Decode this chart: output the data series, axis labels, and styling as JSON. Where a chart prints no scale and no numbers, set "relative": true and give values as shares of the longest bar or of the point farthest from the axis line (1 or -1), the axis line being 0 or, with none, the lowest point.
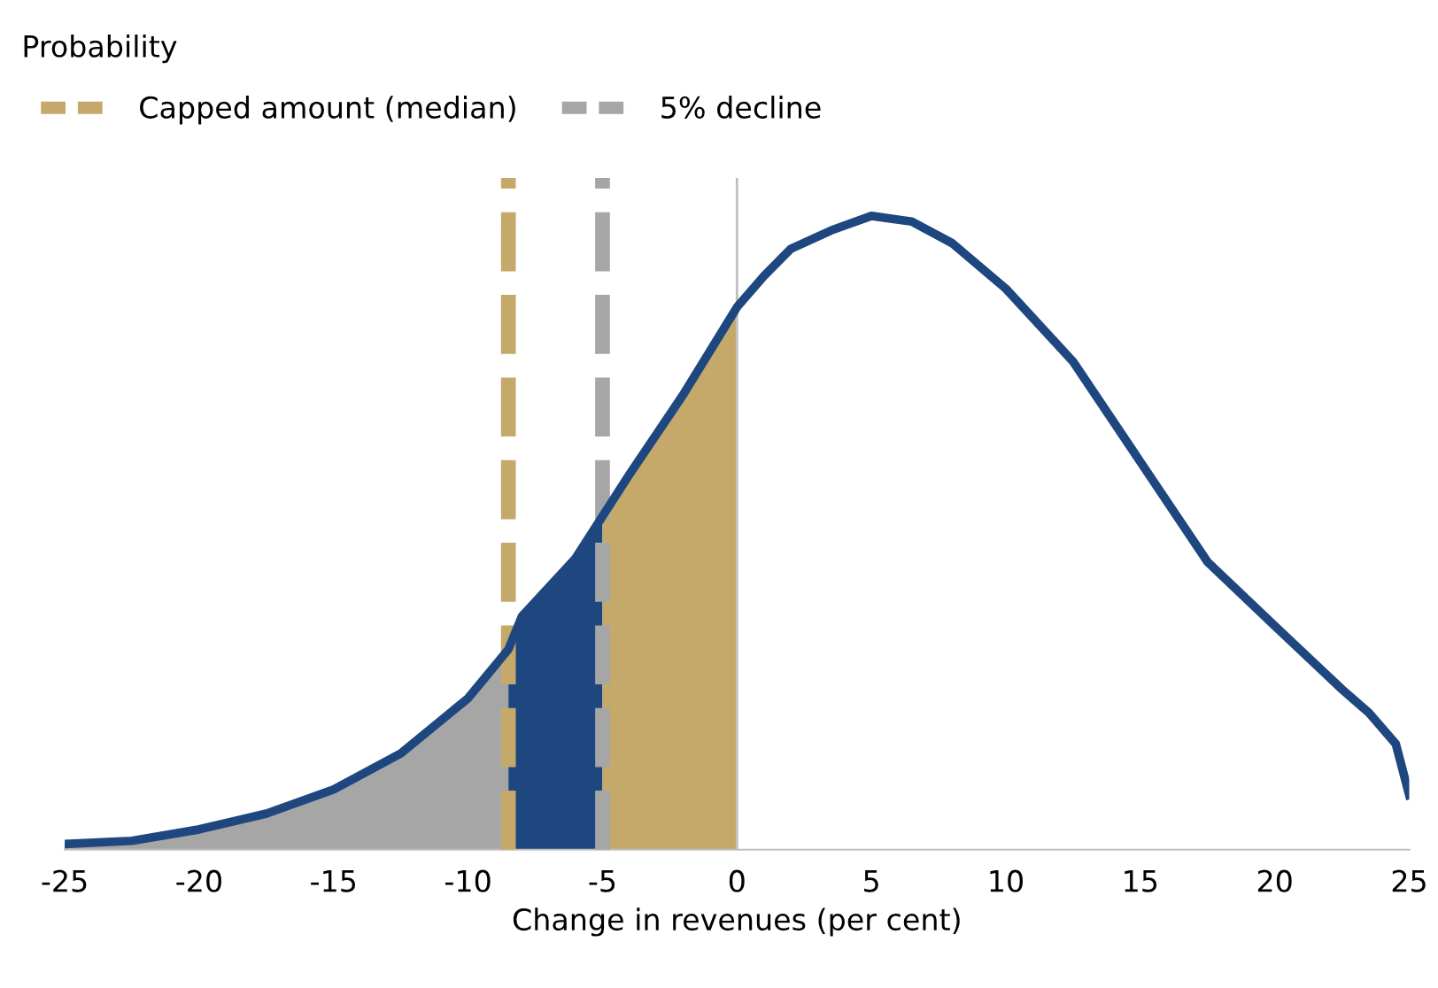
{
  "chart_data": {
    "type": "line",
    "relative": true,
    "annotations": [
      "Probability"
    ],
    "xlabel": "Change in revenues (per cent)",
    "xlim": [
      -25,
      25
    ],
    "xticks": [
      -25,
      -20,
      -15,
      -10,
      -5,
      0,
      5,
      10,
      15,
      20,
      25
    ],
    "grid": false,
    "legend": "top left",
    "tick_labels": "x",
    "series": [
      {
        "type": "area",
        "color": "#a6a6a6",
        "x": [
          -25,
          -22.5,
          -20,
          -17.5,
          -15,
          -12.5,
          -10,
          -8.5
        ],
        "values": [
          0.009,
          0.014,
          0.032,
          0.057,
          0.095,
          0.152,
          0.239,
          0.316
        ]
      },
      {
        "type": "area",
        "color": "#1f477f",
        "x": [
          -8.5,
          -8,
          -6,
          -5
        ],
        "values": [
          0.316,
          0.368,
          0.46,
          0.526
        ]
      },
      {
        "type": "area",
        "color": "#c4a96a",
        "x": [
          -5,
          -4,
          -2,
          0
        ],
        "values": [
          0.526,
          0.592,
          0.718,
          0.856
        ]
      },
      {
        "color": "#1f477f",
        "x": [
          -25,
          -22.5,
          -20,
          -17.5,
          -15,
          -12.5,
          -10,
          -8.5,
          -8,
          -6,
          -5,
          -4,
          -2,
          0,
          1,
          2,
          3.5,
          5,
          6.5,
          8,
          10,
          12.5,
          15,
          17.5,
          20,
          22.5,
          23.5,
          24.5,
          25
        ],
        "values": [
          0.009,
          0.014,
          0.032,
          0.057,
          0.095,
          0.152,
          0.239,
          0.316,
          0.368,
          0.46,
          0.526,
          0.592,
          0.718,
          0.856,
          0.905,
          0.948,
          0.977,
          1,
          0.991,
          0.957,
          0.885,
          0.77,
          0.612,
          0.454,
          0.353,
          0.253,
          0.216,
          0.167,
          0.086
        ]
      }
    ],
    "ref_lines": [
      {
        "axis": "x",
        "value": 0,
        "color": "#bfbfbf",
        "line_style": "solid"
      },
      {
        "axis": "x",
        "value": -8.5,
        "label": "Capped amount (median)",
        "color": "#c4a96a",
        "line_style": "dashed"
      },
      {
        "axis": "x",
        "value": -5,
        "label": "5% decline",
        "color": "#a6a6a6",
        "line_style": "dashed"
      }
    ]
  }
}
